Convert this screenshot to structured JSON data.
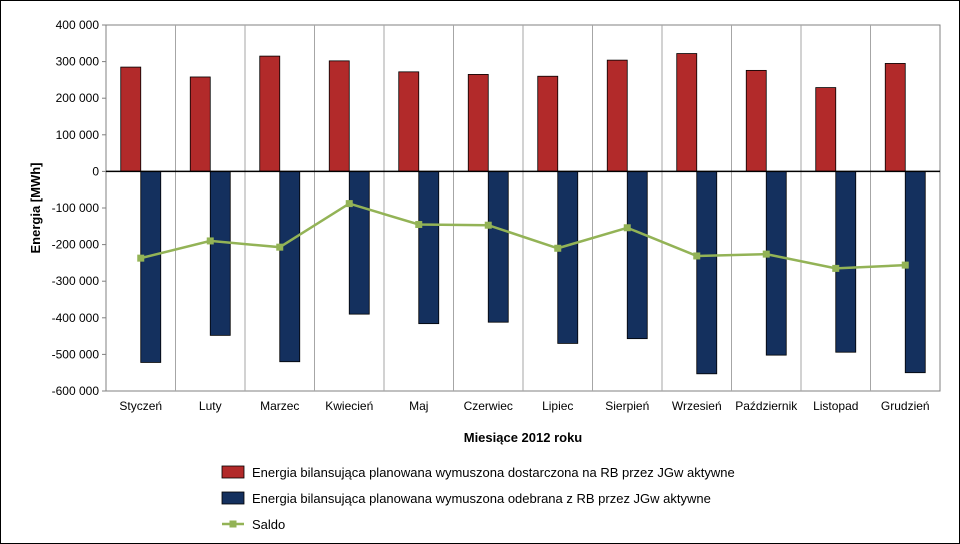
{
  "chart_data": {
    "type": "bar",
    "title": "",
    "xlabel": "Miesiące 2012 roku",
    "ylabel": "Energia [MWh]",
    "ylim": [
      -600000,
      400000
    ],
    "yticks": [
      400000,
      300000,
      200000,
      100000,
      0,
      -100000,
      -200000,
      -300000,
      -400000,
      -500000,
      -600000
    ],
    "ytick_labels": [
      "400 000",
      "300 000",
      "200 000",
      "100 000",
      "0",
      "-100 000",
      "-200 000",
      "-300 000",
      "-400 000",
      "-500 000",
      "-600 000"
    ],
    "grid": "vertical",
    "legend_position": "bottom",
    "categories": [
      "Styczeń",
      "Luty",
      "Marzec",
      "Kwiecień",
      "Maj",
      "Czerwiec",
      "Lipiec",
      "Sierpień",
      "Wrzesień",
      "Październik",
      "Listopad",
      "Grudzień"
    ],
    "series": [
      {
        "name": "Energia bilansująca planowana wymuszona dostarczona na RB przez JGw aktywne",
        "kind": "bar",
        "color": "#b22a2a",
        "values": [
          285000,
          258000,
          315000,
          302000,
          272000,
          265000,
          260000,
          304000,
          322000,
          276000,
          229000,
          295000
        ]
      },
      {
        "name": "Energia bilansująca planowana wymuszona odebrana z RB przez JGw aktywne",
        "kind": "bar",
        "color": "#14305e",
        "values": [
          -522000,
          -448000,
          -520000,
          -390000,
          -416000,
          -412000,
          -470000,
          -457000,
          -553000,
          -502000,
          -494000,
          -550000
        ]
      },
      {
        "name": "Saldo",
        "kind": "line",
        "color": "#93b356",
        "values": [
          -237000,
          -190000,
          -207000,
          -88000,
          -145000,
          -147000,
          -210000,
          -154000,
          -231000,
          -226000,
          -265000,
          -256000
        ]
      }
    ]
  }
}
